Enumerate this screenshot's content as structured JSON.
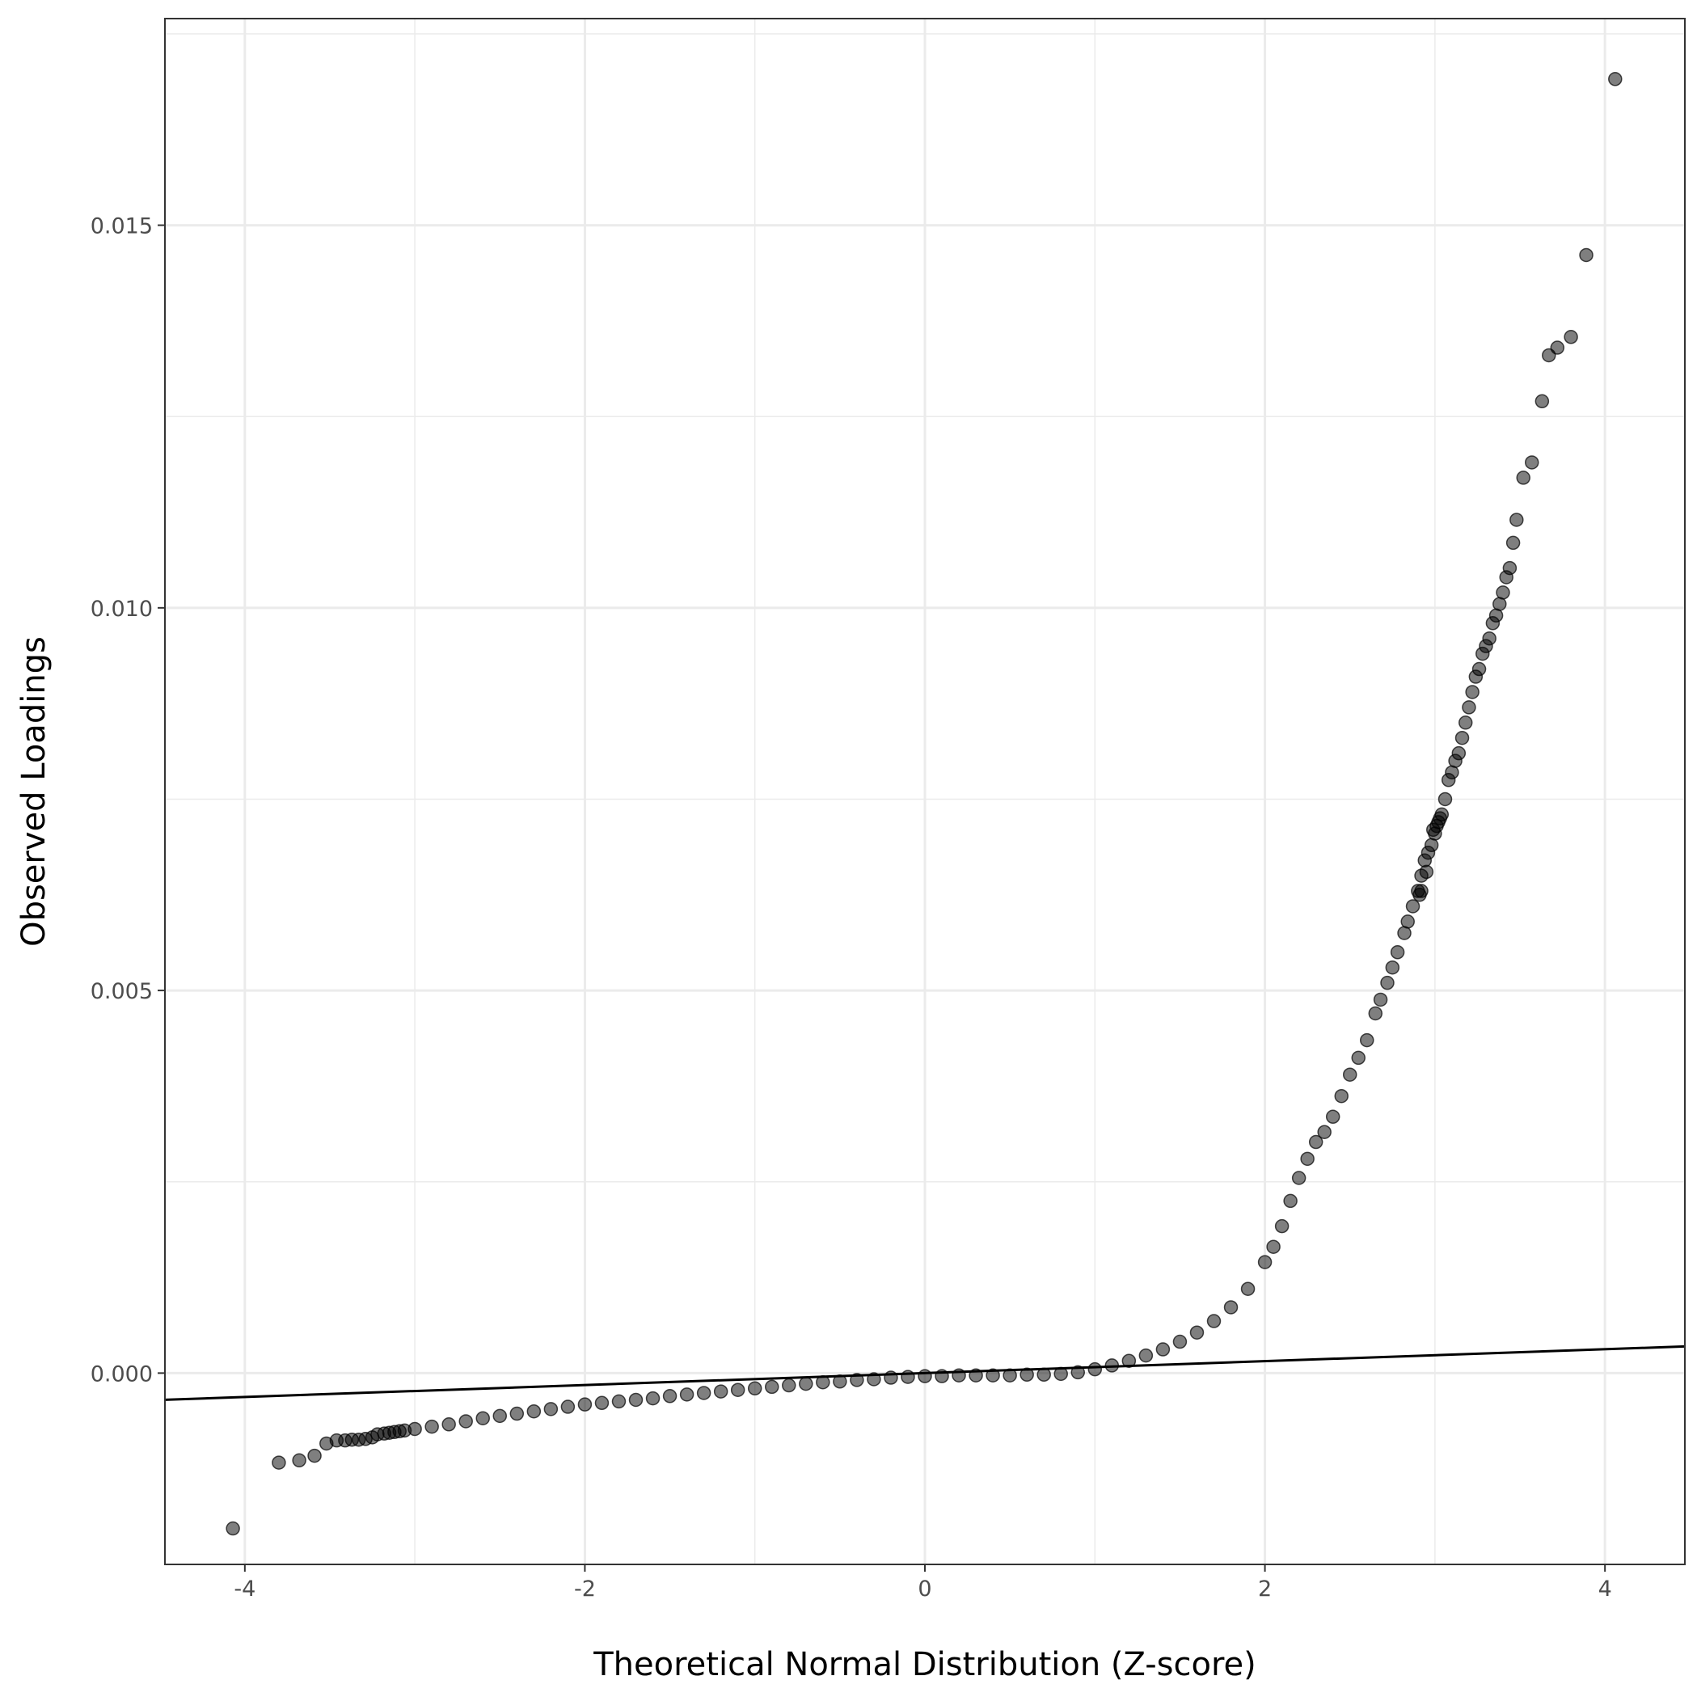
{
  "chart_data": {
    "type": "scatter",
    "title": "",
    "xlabel": "Theoretical Normal Distribution (Z-score)",
    "ylabel": "Observed Loadings",
    "xlim": [
      -4.47,
      4.47
    ],
    "ylim": [
      -0.0025,
      0.0177
    ],
    "x_ticks": [
      -4,
      -2,
      0,
      2,
      4
    ],
    "x_tick_labels": [
      "-4",
      "-2",
      "0",
      "2",
      "4"
    ],
    "y_ticks": [
      0.0,
      0.005,
      0.01,
      0.015
    ],
    "y_tick_labels": [
      "0.000",
      "0.005",
      "0.010",
      "0.015"
    ],
    "grid": true,
    "theme": "bw",
    "point_color": "#000000",
    "point_alpha": 0.5,
    "reference_line": {
      "intercept": 0.0,
      "slope": 7.8e-05,
      "color": "#000000"
    },
    "series": [
      {
        "points": [
          [
            -4.07,
            -0.00203
          ],
          [
            -3.8,
            -0.00117
          ],
          [
            -3.68,
            -0.00114
          ],
          [
            -3.59,
            -0.00108
          ],
          [
            -3.52,
            -0.00092
          ],
          [
            -3.46,
            -0.00088
          ],
          [
            -3.41,
            -0.00088
          ],
          [
            -3.37,
            -0.00087
          ],
          [
            -3.33,
            -0.00087
          ],
          [
            -3.29,
            -0.00086
          ],
          [
            -3.25,
            -0.00084
          ],
          [
            -3.22,
            -0.0008
          ],
          [
            -3.18,
            -0.00079
          ],
          [
            -3.15,
            -0.00078
          ],
          [
            -3.12,
            -0.00077
          ],
          [
            -3.09,
            -0.00076
          ],
          [
            -3.06,
            -0.00075
          ],
          [
            -3.0,
            -0.00073
          ],
          [
            -2.9,
            -0.0007
          ],
          [
            -2.8,
            -0.00067
          ],
          [
            -2.7,
            -0.00063
          ],
          [
            -2.6,
            -0.00059
          ],
          [
            -2.5,
            -0.00056
          ],
          [
            -2.4,
            -0.00053
          ],
          [
            -2.3,
            -0.0005
          ],
          [
            -2.2,
            -0.00047
          ],
          [
            -2.1,
            -0.00044
          ],
          [
            -2.0,
            -0.00041
          ],
          [
            -1.9,
            -0.00039
          ],
          [
            -1.8,
            -0.00037
          ],
          [
            -1.7,
            -0.00035
          ],
          [
            -1.6,
            -0.00033
          ],
          [
            -1.5,
            -0.0003
          ],
          [
            -1.4,
            -0.00028
          ],
          [
            -1.3,
            -0.00026
          ],
          [
            -1.2,
            -0.00024
          ],
          [
            -1.1,
            -0.00022
          ],
          [
            -1.0,
            -0.0002
          ],
          [
            -0.9,
            -0.00018
          ],
          [
            -0.8,
            -0.00016
          ],
          [
            -0.7,
            -0.00014
          ],
          [
            -0.6,
            -0.00012
          ],
          [
            -0.5,
            -0.00011
          ],
          [
            -0.4,
            -9e-05
          ],
          [
            -0.3,
            -8e-05
          ],
          [
            -0.2,
            -6e-05
          ],
          [
            -0.1,
            -5e-05
          ],
          [
            0.0,
            -4e-05
          ],
          [
            0.1,
            -4e-05
          ],
          [
            0.2,
            -3e-05
          ],
          [
            0.3,
            -3e-05
          ],
          [
            0.4,
            -3e-05
          ],
          [
            0.5,
            -3e-05
          ],
          [
            0.6,
            -2e-05
          ],
          [
            0.7,
            -2e-05
          ],
          [
            0.8,
            -1e-05
          ],
          [
            0.9,
            1e-05
          ],
          [
            1.0,
            5e-05
          ],
          [
            1.1,
            0.0001
          ],
          [
            1.2,
            0.00016
          ],
          [
            1.3,
            0.00023
          ],
          [
            1.4,
            0.00031
          ],
          [
            1.5,
            0.00041
          ],
          [
            1.6,
            0.00053
          ],
          [
            1.7,
            0.00068
          ],
          [
            1.8,
            0.00086
          ],
          [
            1.9,
            0.0011
          ],
          [
            2.0,
            0.00145
          ],
          [
            2.05,
            0.00165
          ],
          [
            2.1,
            0.00192
          ],
          [
            2.15,
            0.00225
          ],
          [
            2.2,
            0.00255
          ],
          [
            2.25,
            0.0028
          ],
          [
            2.3,
            0.00302
          ],
          [
            2.35,
            0.00315
          ],
          [
            2.4,
            0.00335
          ],
          [
            2.45,
            0.00362
          ],
          [
            2.5,
            0.0039
          ],
          [
            2.55,
            0.00412
          ],
          [
            2.6,
            0.00435
          ],
          [
            2.65,
            0.0047
          ],
          [
            2.68,
            0.00488
          ],
          [
            2.72,
            0.0051
          ],
          [
            2.75,
            0.0053
          ],
          [
            2.78,
            0.0055
          ],
          [
            2.82,
            0.00575
          ],
          [
            2.84,
            0.0059
          ],
          [
            2.87,
            0.0061
          ],
          [
            2.9,
            0.0063
          ],
          [
            2.92,
            0.0065
          ],
          [
            2.94,
            0.0067
          ],
          [
            2.96,
            0.0068
          ],
          [
            2.98,
            0.0069
          ],
          [
            3.0,
            0.00705
          ],
          [
            3.02,
            0.0072
          ],
          [
            3.03,
            0.00725
          ],
          [
            2.91,
            0.00625
          ],
          [
            2.92,
            0.0063
          ],
          [
            2.95,
            0.00655
          ],
          [
            2.99,
            0.0071
          ],
          [
            3.01,
            0.00715
          ],
          [
            3.04,
            0.0073
          ],
          [
            3.06,
            0.0075
          ],
          [
            3.08,
            0.00775
          ],
          [
            3.1,
            0.00785
          ],
          [
            3.12,
            0.008
          ],
          [
            3.14,
            0.0081
          ],
          [
            3.16,
            0.0083
          ],
          [
            3.18,
            0.0085
          ],
          [
            3.2,
            0.0087
          ],
          [
            3.22,
            0.0089
          ],
          [
            3.24,
            0.0091
          ],
          [
            3.26,
            0.0092
          ],
          [
            3.28,
            0.0094
          ],
          [
            3.3,
            0.0095
          ],
          [
            3.32,
            0.0096
          ],
          [
            3.34,
            0.0098
          ],
          [
            3.36,
            0.0099
          ],
          [
            3.38,
            0.01005
          ],
          [
            3.4,
            0.0102
          ],
          [
            3.42,
            0.0104
          ],
          [
            3.44,
            0.01052
          ],
          [
            3.46,
            0.01085
          ],
          [
            3.48,
            0.01115
          ],
          [
            3.52,
            0.0117
          ],
          [
            3.57,
            0.0119
          ],
          [
            3.63,
            0.0127
          ],
          [
            3.67,
            0.0133
          ],
          [
            3.72,
            0.0134
          ],
          [
            3.8,
            0.01354
          ],
          [
            3.89,
            0.01461
          ],
          [
            4.06,
            0.01691
          ]
        ]
      }
    ]
  }
}
